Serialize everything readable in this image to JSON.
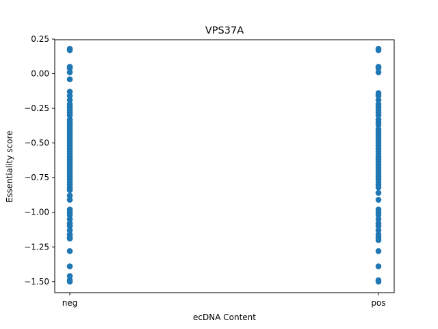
{
  "chart_data": {
    "type": "scatter",
    "title": "VPS37A",
    "xlabel": "ecDNA Content",
    "ylabel": "Essentiality score",
    "categories": [
      "neg",
      "pos"
    ],
    "ylim": [
      -1.58,
      0.245
    ],
    "yticks": [
      0.25,
      0.0,
      -0.25,
      -0.5,
      -0.75,
      -1.0,
      -1.25,
      -1.5
    ],
    "ytick_labels": [
      "0.25",
      "0.00",
      "−0.25",
      "−0.50",
      "−0.75",
      "−1.00",
      "−1.25",
      "−1.50"
    ],
    "grid": false,
    "marker_color": "#1f77b4",
    "series": [
      {
        "category": "neg",
        "values": [
          0.18,
          0.17,
          0.05,
          0.04,
          0.01,
          -0.04,
          -0.13,
          -0.16,
          -0.19,
          -0.22,
          -0.24,
          -0.26,
          -0.28,
          -0.3,
          -0.33,
          -0.35,
          -0.36,
          -0.38,
          -0.4,
          -0.42,
          -0.44,
          -0.46,
          -0.48,
          -0.5,
          -0.52,
          -0.54,
          -0.56,
          -0.58,
          -0.6,
          -0.62,
          -0.64,
          -0.66,
          -0.68,
          -0.7,
          -0.72,
          -0.74,
          -0.76,
          -0.78,
          -0.8,
          -0.82,
          -0.84,
          -0.88,
          -0.91,
          -0.98,
          -1.0,
          -1.02,
          -1.05,
          -1.08,
          -1.1,
          -1.13,
          -1.16,
          -1.18,
          -1.19,
          -1.28,
          -1.39,
          -1.46,
          -1.49,
          -1.5
        ]
      },
      {
        "category": "pos",
        "values": [
          0.18,
          0.17,
          0.05,
          0.04,
          0.01,
          -0.14,
          -0.16,
          -0.19,
          -0.22,
          -0.24,
          -0.26,
          -0.28,
          -0.3,
          -0.33,
          -0.35,
          -0.37,
          -0.4,
          -0.42,
          -0.44,
          -0.46,
          -0.48,
          -0.5,
          -0.52,
          -0.54,
          -0.56,
          -0.58,
          -0.6,
          -0.62,
          -0.64,
          -0.66,
          -0.68,
          -0.7,
          -0.72,
          -0.74,
          -0.76,
          -0.78,
          -0.8,
          -0.82,
          -0.86,
          -0.91,
          -0.98,
          -1.0,
          -1.02,
          -1.05,
          -1.08,
          -1.1,
          -1.13,
          -1.16,
          -1.18,
          -1.2,
          -1.28,
          -1.39,
          -1.49,
          -1.5
        ]
      }
    ]
  }
}
